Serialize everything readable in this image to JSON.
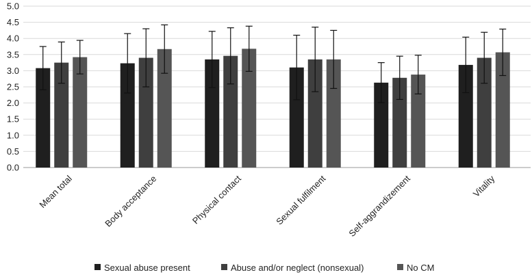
{
  "chart_data": {
    "type": "bar",
    "title": "",
    "xlabel": "",
    "ylabel": "",
    "ylim": [
      0,
      5
    ],
    "yticks": [
      "0.0",
      "0.5",
      "1.0",
      "1.5",
      "2.0",
      "2.5",
      "3.0",
      "3.5",
      "4.0",
      "4.5",
      "5.0"
    ],
    "grid": true,
    "legend_position": "bottom",
    "categories": [
      "Mean total",
      "Body acceptance",
      "Physical contact",
      "Sexual fulfilment",
      "Self-aggrandizement",
      "Vitality"
    ],
    "series": [
      {
        "name": "Sexual abuse present",
        "color": "#1f1f1f",
        "values": [
          3.08,
          3.23,
          3.35,
          3.1,
          2.63,
          3.18
        ],
        "error": [
          0.67,
          0.92,
          0.87,
          1.0,
          0.62,
          0.86
        ]
      },
      {
        "name": "Abuse and/or neglect (nonsexual)",
        "color": "#3f3f3f",
        "values": [
          3.25,
          3.4,
          3.46,
          3.35,
          2.78,
          3.4
        ],
        "error": [
          0.64,
          0.9,
          0.87,
          1.0,
          0.67,
          0.79
        ]
      },
      {
        "name": "No CM",
        "color": "#555555",
        "values": [
          3.42,
          3.67,
          3.68,
          3.35,
          2.88,
          3.57
        ],
        "error": [
          0.52,
          0.75,
          0.7,
          0.9,
          0.6,
          0.72
        ]
      }
    ]
  }
}
